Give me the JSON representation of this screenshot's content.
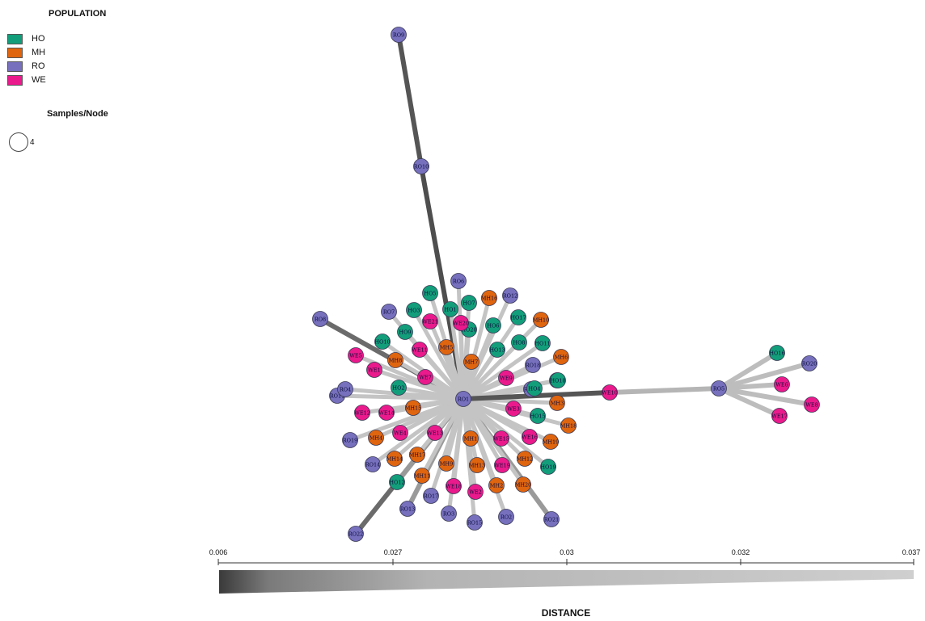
{
  "legend": {
    "population_title": "POPULATION",
    "items": [
      {
        "code": "HO",
        "color": "#129e7a"
      },
      {
        "code": "MH",
        "color": "#e0650f"
      },
      {
        "code": "RO",
        "color": "#7670bd"
      },
      {
        "code": "WE",
        "color": "#ea1a8c"
      }
    ],
    "samples_title": "Samples/Node",
    "samples_value": "4"
  },
  "scale": {
    "title": "DISTANCE",
    "ticks": [
      "0.006",
      "0.027",
      "0.03",
      "0.032",
      "0.037"
    ]
  },
  "network": {
    "nodes": [
      {
        "id": "RO1",
        "pop": "RO"
      },
      {
        "id": "RO9",
        "pop": "RO"
      },
      {
        "id": "RO10",
        "pop": "RO"
      },
      {
        "id": "RO6",
        "pop": "RO"
      },
      {
        "id": "RO12",
        "pop": "RO"
      },
      {
        "id": "RO7",
        "pop": "RO"
      },
      {
        "id": "RO8",
        "pop": "RO"
      },
      {
        "id": "RO11",
        "pop": "RO"
      },
      {
        "id": "RO4",
        "pop": "RO"
      },
      {
        "id": "RO19",
        "pop": "RO"
      },
      {
        "id": "RO14",
        "pop": "RO"
      },
      {
        "id": "RO16",
        "pop": "RO"
      },
      {
        "id": "RO18",
        "pop": "RO"
      },
      {
        "id": "RO13",
        "pop": "RO"
      },
      {
        "id": "RO17",
        "pop": "RO"
      },
      {
        "id": "RO3",
        "pop": "RO"
      },
      {
        "id": "RO15",
        "pop": "RO"
      },
      {
        "id": "RO2",
        "pop": "RO"
      },
      {
        "id": "RO5",
        "pop": "RO"
      },
      {
        "id": "RO20",
        "pop": "RO"
      },
      {
        "id": "RO21",
        "pop": "RO"
      },
      {
        "id": "RO22",
        "pop": "RO"
      },
      {
        "id": "HO5",
        "pop": "HO"
      },
      {
        "id": "HO3",
        "pop": "HO"
      },
      {
        "id": "HO7",
        "pop": "HO"
      },
      {
        "id": "HO1",
        "pop": "HO"
      },
      {
        "id": "HO20",
        "pop": "HO"
      },
      {
        "id": "HO6",
        "pop": "HO"
      },
      {
        "id": "HO17",
        "pop": "HO"
      },
      {
        "id": "HO9",
        "pop": "HO"
      },
      {
        "id": "HO8",
        "pop": "HO"
      },
      {
        "id": "HO11",
        "pop": "HO"
      },
      {
        "id": "HO13",
        "pop": "HO"
      },
      {
        "id": "HO10",
        "pop": "HO"
      },
      {
        "id": "HO14",
        "pop": "HO"
      },
      {
        "id": "HO4",
        "pop": "HO"
      },
      {
        "id": "HO15",
        "pop": "HO"
      },
      {
        "id": "HO2",
        "pop": "HO"
      },
      {
        "id": "HO19",
        "pop": "HO"
      },
      {
        "id": "HO18",
        "pop": "HO"
      },
      {
        "id": "HO12",
        "pop": "HO"
      },
      {
        "id": "HO16",
        "pop": "HO"
      },
      {
        "id": "MH16",
        "pop": "MH"
      },
      {
        "id": "MH10",
        "pop": "MH"
      },
      {
        "id": "MH5",
        "pop": "MH"
      },
      {
        "id": "MH7",
        "pop": "MH"
      },
      {
        "id": "MH6",
        "pop": "MH"
      },
      {
        "id": "MH8",
        "pop": "MH"
      },
      {
        "id": "MH3",
        "pop": "MH"
      },
      {
        "id": "MH15",
        "pop": "MH"
      },
      {
        "id": "MH18",
        "pop": "MH"
      },
      {
        "id": "MH4",
        "pop": "MH"
      },
      {
        "id": "MH14",
        "pop": "MH"
      },
      {
        "id": "MH17",
        "pop": "MH"
      },
      {
        "id": "MH1",
        "pop": "MH"
      },
      {
        "id": "MH9",
        "pop": "MH"
      },
      {
        "id": "MH13",
        "pop": "MH"
      },
      {
        "id": "MH12",
        "pop": "MH"
      },
      {
        "id": "MH11",
        "pop": "MH"
      },
      {
        "id": "MH20",
        "pop": "MH"
      },
      {
        "id": "MH2",
        "pop": "MH"
      },
      {
        "id": "MH19",
        "pop": "MH"
      },
      {
        "id": "WE5",
        "pop": "WE"
      },
      {
        "id": "WE11",
        "pop": "WE"
      },
      {
        "id": "WE1",
        "pop": "WE"
      },
      {
        "id": "WE7",
        "pop": "WE"
      },
      {
        "id": "WE9",
        "pop": "WE"
      },
      {
        "id": "WE12",
        "pop": "WE"
      },
      {
        "id": "WE14",
        "pop": "WE"
      },
      {
        "id": "WE21",
        "pop": "WE"
      },
      {
        "id": "WE3",
        "pop": "WE"
      },
      {
        "id": "WE4",
        "pop": "WE"
      },
      {
        "id": "WE13",
        "pop": "WE"
      },
      {
        "id": "WE15",
        "pop": "WE"
      },
      {
        "id": "WE16",
        "pop": "WE"
      },
      {
        "id": "WE19",
        "pop": "WE"
      },
      {
        "id": "WE18",
        "pop": "WE"
      },
      {
        "id": "WE2",
        "pop": "WE"
      },
      {
        "id": "WE10",
        "pop": "WE"
      },
      {
        "id": "WE6",
        "pop": "WE"
      },
      {
        "id": "WE8",
        "pop": "WE"
      },
      {
        "id": "WE17",
        "pop": "WE"
      },
      {
        "id": "WE20",
        "pop": "WE"
      }
    ]
  }
}
